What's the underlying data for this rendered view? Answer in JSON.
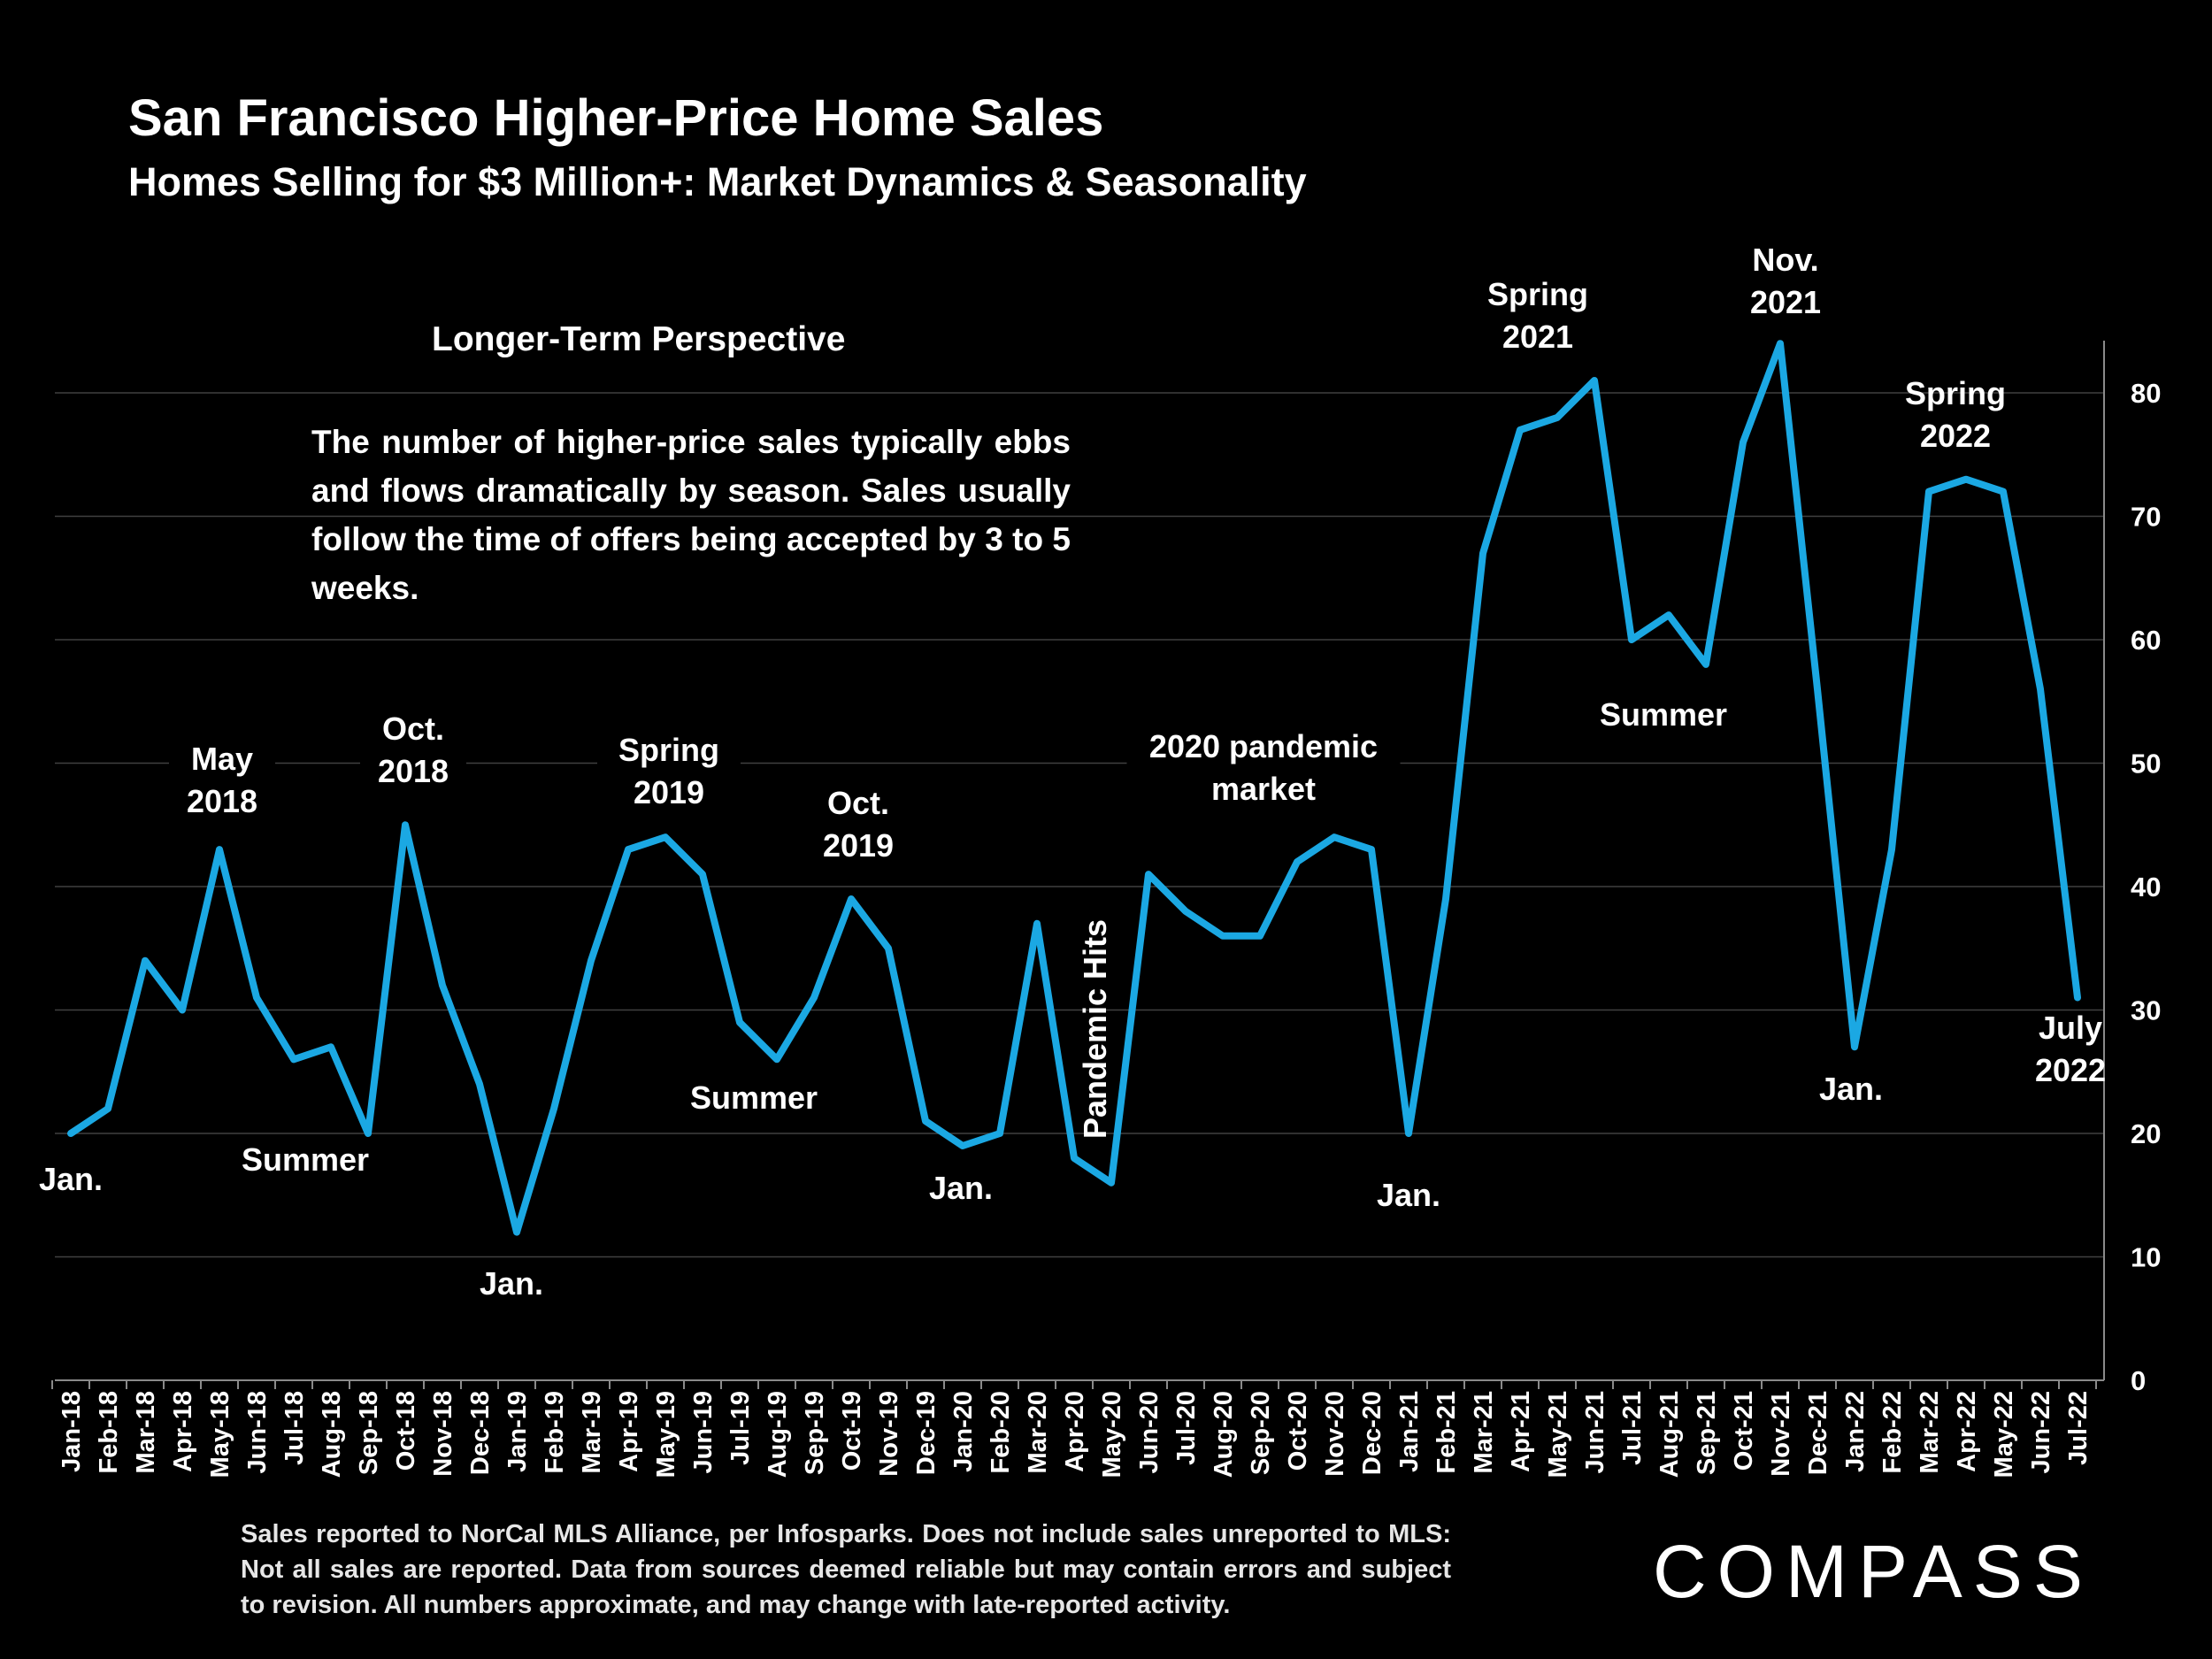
{
  "title": "San Francisco Higher-Price Home Sales",
  "subtitle": "Homes Selling for  $3 Million+: Market Dynamics & Seasonality",
  "panel": {
    "heading": "Longer-Term Perspective",
    "body": "The number of higher-price sales typically ebbs and flows dramatically by season. Sales usually follow the time of offers being accepted by 3 to 5 weeks."
  },
  "footnote": "Sales reported to NorCal MLS Alliance, per Infosparks. Does not include sales unreported to MLS: Not all sales are reported. Data from sources deemed reliable but may contain errors and subject to revision.  All numbers approximate, and may change with late-reported activity.",
  "logo": "COMPASS",
  "colors": {
    "background": "#000000",
    "line": "#1ba8e3",
    "grid": "#404040",
    "text": "#ffffff"
  },
  "chart_data": {
    "type": "line",
    "title": "San Francisco Higher-Price Home Sales",
    "subtitle": "Homes Selling for  $3 Million+: Market Dynamics & Seasonality",
    "xlabel": "",
    "ylabel": "",
    "ylim": [
      0,
      80
    ],
    "yticks": [
      0,
      10,
      20,
      30,
      40,
      50,
      60,
      70,
      80
    ],
    "grid": true,
    "y_axis_side": "right",
    "categories": [
      "Jan-18",
      "Feb-18",
      "Mar-18",
      "Apr-18",
      "May-18",
      "Jun-18",
      "Jul-18",
      "Aug-18",
      "Sep-18",
      "Oct-18",
      "Nov-18",
      "Dec-18",
      "Jan-19",
      "Feb-19",
      "Mar-19",
      "Apr-19",
      "May-19",
      "Jun-19",
      "Jul-19",
      "Aug-19",
      "Sep-19",
      "Oct-19",
      "Nov-19",
      "Dec-19",
      "Jan-20",
      "Feb-20",
      "Mar-20",
      "Apr-20",
      "May-20",
      "Jun-20",
      "Jul-20",
      "Aug-20",
      "Sep-20",
      "Oct-20",
      "Nov-20",
      "Dec-20",
      "Jan-21",
      "Feb-21",
      "Mar-21",
      "Apr-21",
      "May-21",
      "Jun-21",
      "Jul-21",
      "Aug-21",
      "Sep-21",
      "Oct-21",
      "Nov-21",
      "Dec-21",
      "Jan-22",
      "Feb-22",
      "Mar-22",
      "Apr-22",
      "May-22",
      "Jun-22",
      "Jul-22"
    ],
    "series": [
      {
        "name": "Homes Selling for $3 Million+",
        "values": [
          20,
          22,
          34,
          30,
          43,
          31,
          26,
          27,
          20,
          45,
          32,
          24,
          12,
          22,
          34,
          43,
          44,
          41,
          29,
          26,
          31,
          39,
          35,
          21,
          19,
          20,
          37,
          18,
          16,
          41,
          38,
          36,
          36,
          42,
          44,
          43,
          20,
          39,
          67,
          77,
          78,
          81,
          60,
          62,
          58,
          76,
          84,
          56,
          27,
          43,
          72,
          73,
          72,
          56,
          31
        ]
      }
    ],
    "annotations": [
      {
        "id": "jan-2018",
        "lines": [
          "Jan."
        ]
      },
      {
        "id": "may-2018",
        "lines": [
          "May",
          "2018"
        ]
      },
      {
        "id": "summer-2018",
        "lines": [
          "Summer"
        ]
      },
      {
        "id": "oct-2018",
        "lines": [
          "Oct.",
          "2018"
        ]
      },
      {
        "id": "jan-2019",
        "lines": [
          "Jan."
        ]
      },
      {
        "id": "spring-2019",
        "lines": [
          "Spring",
          "2019"
        ]
      },
      {
        "id": "summer-2019",
        "lines": [
          "Summer"
        ]
      },
      {
        "id": "oct-2019",
        "lines": [
          "Oct.",
          "2019"
        ]
      },
      {
        "id": "jan-2020",
        "lines": [
          "Jan."
        ]
      },
      {
        "id": "pandemic-hits",
        "lines": [
          "Pandemic Hits"
        ],
        "vertical": true
      },
      {
        "id": "pandemic-market",
        "lines": [
          "2020 pandemic",
          "market"
        ]
      },
      {
        "id": "jan-2021",
        "lines": [
          "Jan."
        ]
      },
      {
        "id": "spring-2021",
        "lines": [
          "Spring",
          "2021"
        ]
      },
      {
        "id": "summer-2021",
        "lines": [
          "Summer"
        ]
      },
      {
        "id": "nov-2021",
        "lines": [
          "Nov.",
          "2021"
        ]
      },
      {
        "id": "jan-2022",
        "lines": [
          "Jan."
        ]
      },
      {
        "id": "spring-2022",
        "lines": [
          "Spring",
          "2022"
        ]
      },
      {
        "id": "july-2022",
        "lines": [
          "July",
          "2022"
        ]
      }
    ]
  }
}
